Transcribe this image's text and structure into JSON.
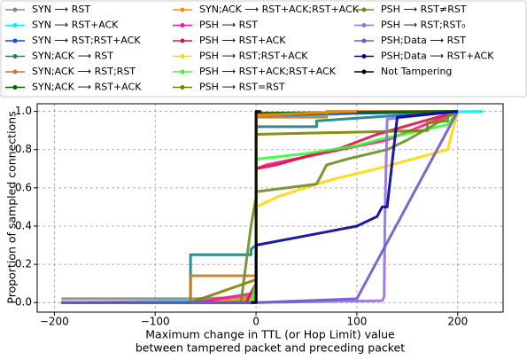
{
  "chart_data": {
    "type": "line",
    "xlabel": [
      "Maximum change in TTL (or Hop Limit) value",
      "between tampered packet and preceding packet"
    ],
    "ylabel": "Proportion of sampled connections",
    "xlim": [
      -217,
      245
    ],
    "ylim": [
      -0.05,
      1.04
    ],
    "xticks": [
      {
        "value": -200,
        "label": "−200"
      },
      {
        "value": -100,
        "label": "−100"
      },
      0,
      100,
      200
    ],
    "yticks": [
      {
        "value": 0,
        "label": "0.0"
      },
      0.2,
      0.4,
      0.6,
      0.8,
      {
        "value": 1,
        "label": "1.0"
      }
    ],
    "grid": true,
    "legend": "top",
    "series": [
      {
        "name": "SYN ⟶ RST",
        "color": "#888888",
        "x": [
          -193,
          -60,
          0,
          0,
          200
        ],
        "values": [
          0.02,
          0.02,
          0.03,
          0.99,
          1.0
        ]
      },
      {
        "name": "SYN ⟶ RST+ACK",
        "color": "#00f0f0",
        "x": [
          -193,
          0,
          0,
          100,
          225
        ],
        "values": [
          0,
          0.01,
          0.97,
          0.99,
          1.0
        ]
      },
      {
        "name": "SYN ⟶ RST;RST+ACK",
        "color": "#1f3fff",
        "x": [
          -193,
          0,
          0,
          200
        ],
        "values": [
          0,
          0,
          0.98,
          1.0
        ]
      },
      {
        "name": "SYN;ACK ⟶ RST",
        "color": "#1a8080",
        "x": [
          -70,
          -65,
          -65,
          -5,
          -5,
          0,
          0,
          60,
          60,
          200
        ],
        "values": [
          0,
          0,
          0.25,
          0.25,
          0.28,
          0.3,
          0.92,
          0.92,
          0.95,
          1.0
        ]
      },
      {
        "name": "SYN;ACK ⟶ RST;RST",
        "color": "#c87a1e",
        "x": [
          -65,
          -65,
          0,
          0,
          70,
          70,
          200
        ],
        "values": [
          0,
          0.14,
          0.14,
          0.97,
          0.97,
          1.0,
          1.0
        ]
      },
      {
        "name": "SYN;ACK ⟶ RST+ACK",
        "color": "#006400",
        "x": [
          -193,
          0,
          0,
          200
        ],
        "values": [
          0,
          0,
          0.99,
          1.0
        ]
      },
      {
        "name": "SYN;ACK ⟶ RST+ACK;RST+ACK",
        "color": "#ff8c00",
        "x": [
          -65,
          0,
          0,
          100
        ],
        "values": [
          0,
          0.02,
          0.98,
          1.0
        ]
      },
      {
        "name": "PSH ⟶ RST",
        "color": "#ff1493",
        "x": [
          -60,
          0,
          0,
          10,
          130,
          200
        ],
        "values": [
          0,
          0.05,
          0.7,
          0.72,
          0.85,
          1.0
        ]
      },
      {
        "name": "PSH ⟶ RST+ACK",
        "color": "#dc143c",
        "x": [
          -10,
          0,
          0,
          20,
          60,
          80,
          120,
          200
        ],
        "values": [
          0,
          0.1,
          0.7,
          0.72,
          0.78,
          0.8,
          0.88,
          1.0
        ]
      },
      {
        "name": "PSH ⟶ RST;RST+ACK",
        "color": "#ffd700",
        "x": [
          0,
          0,
          20,
          60,
          80,
          120,
          190,
          200
        ],
        "values": [
          0,
          0.5,
          0.55,
          0.62,
          0.65,
          0.7,
          0.8,
          1.0
        ]
      },
      {
        "name": "PSH ⟶ RST+ACK;RST+ACK",
        "color": "#32ff32",
        "x": [
          -5,
          0,
          0,
          50,
          100,
          120,
          190,
          200
        ],
        "values": [
          0,
          0.1,
          0.75,
          0.78,
          0.82,
          0.85,
          0.93,
          1.0
        ]
      },
      {
        "name": "PSH ⟶ RST=RST",
        "color": "#808000",
        "x": [
          -65,
          0,
          0,
          170,
          170,
          190,
          190,
          200
        ],
        "values": [
          0,
          0.12,
          0.88,
          0.9,
          0.94,
          0.95,
          0.98,
          1.0
        ]
      },
      {
        "name": "PSH ⟶ RST≠RST",
        "color": "#6b8e23",
        "x": [
          -15,
          -10,
          -5,
          0,
          0,
          30,
          60,
          70,
          90,
          130,
          150,
          200
        ],
        "values": [
          0,
          0.2,
          0.4,
          0.55,
          0.58,
          0.6,
          0.62,
          0.72,
          0.75,
          0.8,
          0.85,
          1.0
        ]
      },
      {
        "name": "PSH ⟶ RST;RST₀",
        "color": "#9370db",
        "x": [
          0,
          125,
          127,
          128,
          130,
          200
        ],
        "values": [
          0,
          0.01,
          0.03,
          0.5,
          0.96,
          1.0
        ]
      },
      {
        "name": "PSH;Data ⟶ RST",
        "color": "#6a5acd",
        "x": [
          -193,
          0,
          100,
          200
        ],
        "values": [
          0,
          0,
          0.02,
          1.0
        ]
      },
      {
        "name": "PSH;Data ⟶ RST+ACK",
        "color": "#0000a0",
        "x": [
          0,
          0,
          50,
          100,
          120,
          125,
          130,
          140,
          200
        ],
        "values": [
          0,
          0.3,
          0.35,
          0.4,
          0.45,
          0.5,
          0.5,
          0.97,
          1.0
        ]
      },
      {
        "name": "Not Tampering",
        "color": "#000000",
        "x": [
          -5,
          0,
          0,
          5
        ],
        "values": [
          0,
          0,
          1,
          1
        ]
      }
    ]
  }
}
